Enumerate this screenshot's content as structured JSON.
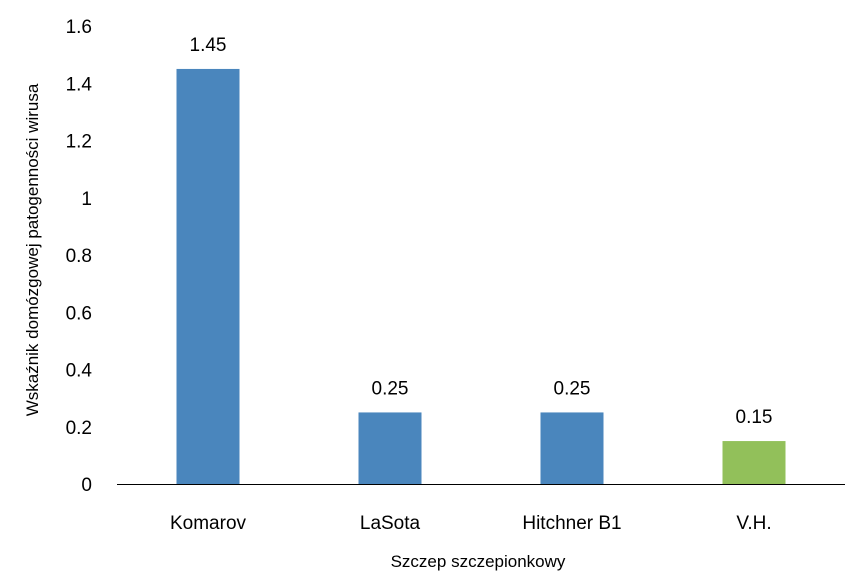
{
  "chart_data": {
    "type": "bar",
    "title": "",
    "xlabel": "Szczep szczepionkowy",
    "ylabel": "Wskaźnik domózgowej patogenności wirusa",
    "categories": [
      "Komarov",
      "LaSota",
      "Hitchner B1",
      "V.H."
    ],
    "values": [
      1.45,
      0.25,
      0.25,
      0.15
    ],
    "data_labels": [
      "1.45",
      "0.25",
      "0.25",
      "0.15"
    ],
    "bar_colors": [
      "#4a86bd",
      "#4a86bd",
      "#4a86bd",
      "#92c05a"
    ],
    "ylim": [
      0,
      1.6
    ],
    "yticks": [
      0,
      0.2,
      0.4,
      0.6,
      0.8,
      1,
      1.2,
      1.4,
      1.6
    ],
    "ytick_labels": [
      "0",
      "0.2",
      "0.4",
      "0.6",
      "0.8",
      "1",
      "1.2",
      "1.4",
      "1.6"
    ],
    "grid": false,
    "legend": "none"
  }
}
